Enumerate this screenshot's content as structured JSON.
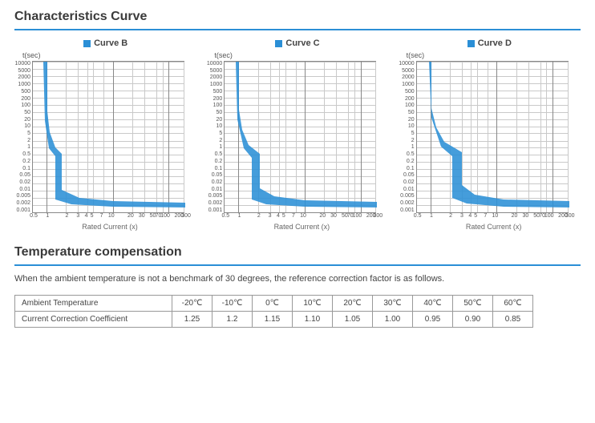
{
  "section1_title": "Characteristics Curve",
  "section2_title": "Temperature compensation",
  "temp_note": "When the ambient temperature is not a benchmark of 30 degrees, the reference correction factor is as follows.",
  "y_axis_label": "t(sec)",
  "x_axis_label": "Rated Current (x)",
  "y_ticks": [
    "10000",
    "5000",
    "2000",
    "1000",
    "500",
    "200",
    "100",
    "50",
    "20",
    "10",
    "5",
    "2",
    "1",
    "0.5",
    "0.2",
    "0.1",
    "0.05",
    "0.02",
    "0.01",
    "0.005",
    "0.002",
    "0.001"
  ],
  "x_ticks": [
    {
      "label": "0.5",
      "pos": 0
    },
    {
      "label": "1",
      "pos": 10
    },
    {
      "label": "2",
      "pos": 24
    },
    {
      "label": "3",
      "pos": 32
    },
    {
      "label": "4",
      "pos": 38
    },
    {
      "label": "5",
      "pos": 42
    },
    {
      "label": "7",
      "pos": 49
    },
    {
      "label": "10",
      "pos": 56
    },
    {
      "label": "20",
      "pos": 70
    },
    {
      "label": "30",
      "pos": 78
    },
    {
      "label": "50",
      "pos": 86
    },
    {
      "label": "70",
      "pos": 90
    },
    {
      "label": "100",
      "pos": 95
    },
    {
      "label": "200",
      "pos": 105
    },
    {
      "label": "300",
      "pos": 110
    }
  ],
  "charts": [
    {
      "title": "Curve B",
      "band_poly": "18,0 18,62 21,88 28,107 36,115 36,160 58,170 100,174 190,176 190,182 100,181 48,178 28,172 28,118 20,108 15,74 13,0"
    },
    {
      "title": "Curve C",
      "band_poly": "18,0 18,60 22,85 30,104 44,115 44,158 62,168 100,173 190,175 190,182 100,181 52,178 34,172 34,120 24,108 16,72 14,0"
    },
    {
      "title": "Curve D",
      "band_poly": "18,0 18,58 24,82 34,100 56,113 56,154 72,166 108,172 190,174 190,182 108,181 62,177 44,170 44,118 30,106 18,70 15,0"
    }
  ],
  "hgrid_positions_pct": [
    0,
    4.8,
    9.5,
    14.3,
    19,
    23.8,
    28.6,
    33.3,
    38.1,
    42.9,
    47.6,
    52.4,
    57.1,
    61.9,
    66.7,
    71.4,
    76.2,
    81,
    85.7,
    90.5,
    95.2
  ],
  "vgrid_positions": [
    {
      "pct": 9,
      "major": true
    },
    {
      "pct": 22,
      "major": false
    },
    {
      "pct": 30,
      "major": false
    },
    {
      "pct": 36,
      "major": false
    },
    {
      "pct": 40,
      "major": false
    },
    {
      "pct": 47,
      "major": false
    },
    {
      "pct": 53,
      "major": true
    },
    {
      "pct": 66,
      "major": false
    },
    {
      "pct": 74,
      "major": false
    },
    {
      "pct": 82,
      "major": false
    },
    {
      "pct": 86,
      "major": false
    },
    {
      "pct": 90,
      "major": true
    },
    {
      "pct": 100,
      "major": false
    }
  ],
  "colors": {
    "accent": "#2b8fd6",
    "grid_minor": "#c9c9c9",
    "grid_major": "#888888",
    "text": "#444444"
  },
  "table": {
    "row1_header": "Ambient Temperature",
    "row2_header": "Current Correction Coefficient",
    "temps": [
      "-20℃",
      "-10℃",
      "0℃",
      "10℃",
      "20℃",
      "30℃",
      "40℃",
      "50℃",
      "60℃"
    ],
    "coeffs": [
      "1.25",
      "1.2",
      "1.15",
      "1.10",
      "1.05",
      "1.00",
      "0.95",
      "0.90",
      "0.85"
    ]
  }
}
